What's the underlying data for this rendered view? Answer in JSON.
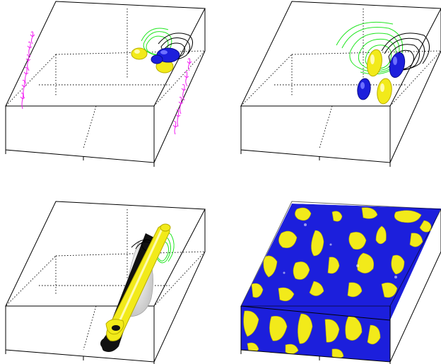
{
  "figure": {
    "panel_count": 4,
    "colors": {
      "yellow": "#f2ea1a",
      "yellow_dark": "#b8ae00",
      "blue": "#1c1fdc",
      "blue_dark": "#0a0c8a",
      "green": "#22e622",
      "magenta": "#f21ff2",
      "black": "#000000",
      "grey": "#cfcfcf"
    },
    "panels": [
      {
        "id": "top-left",
        "features": [
          "magenta-vector-arrows",
          "green-contours",
          "black-contours",
          "yellow-isosurface",
          "blue-isosurface"
        ]
      },
      {
        "id": "top-right",
        "features": [
          "green-contours",
          "black-contours",
          "yellow-isosurface",
          "blue-isosurface"
        ]
      },
      {
        "id": "bottom-left",
        "features": [
          "yellow-tube",
          "black-tube",
          "grey-surface",
          "green-contours",
          "black-contours"
        ]
      },
      {
        "id": "bottom-right",
        "features": [
          "turbulent-yellow-isosurface",
          "turbulent-blue-isosurface"
        ]
      }
    ]
  }
}
